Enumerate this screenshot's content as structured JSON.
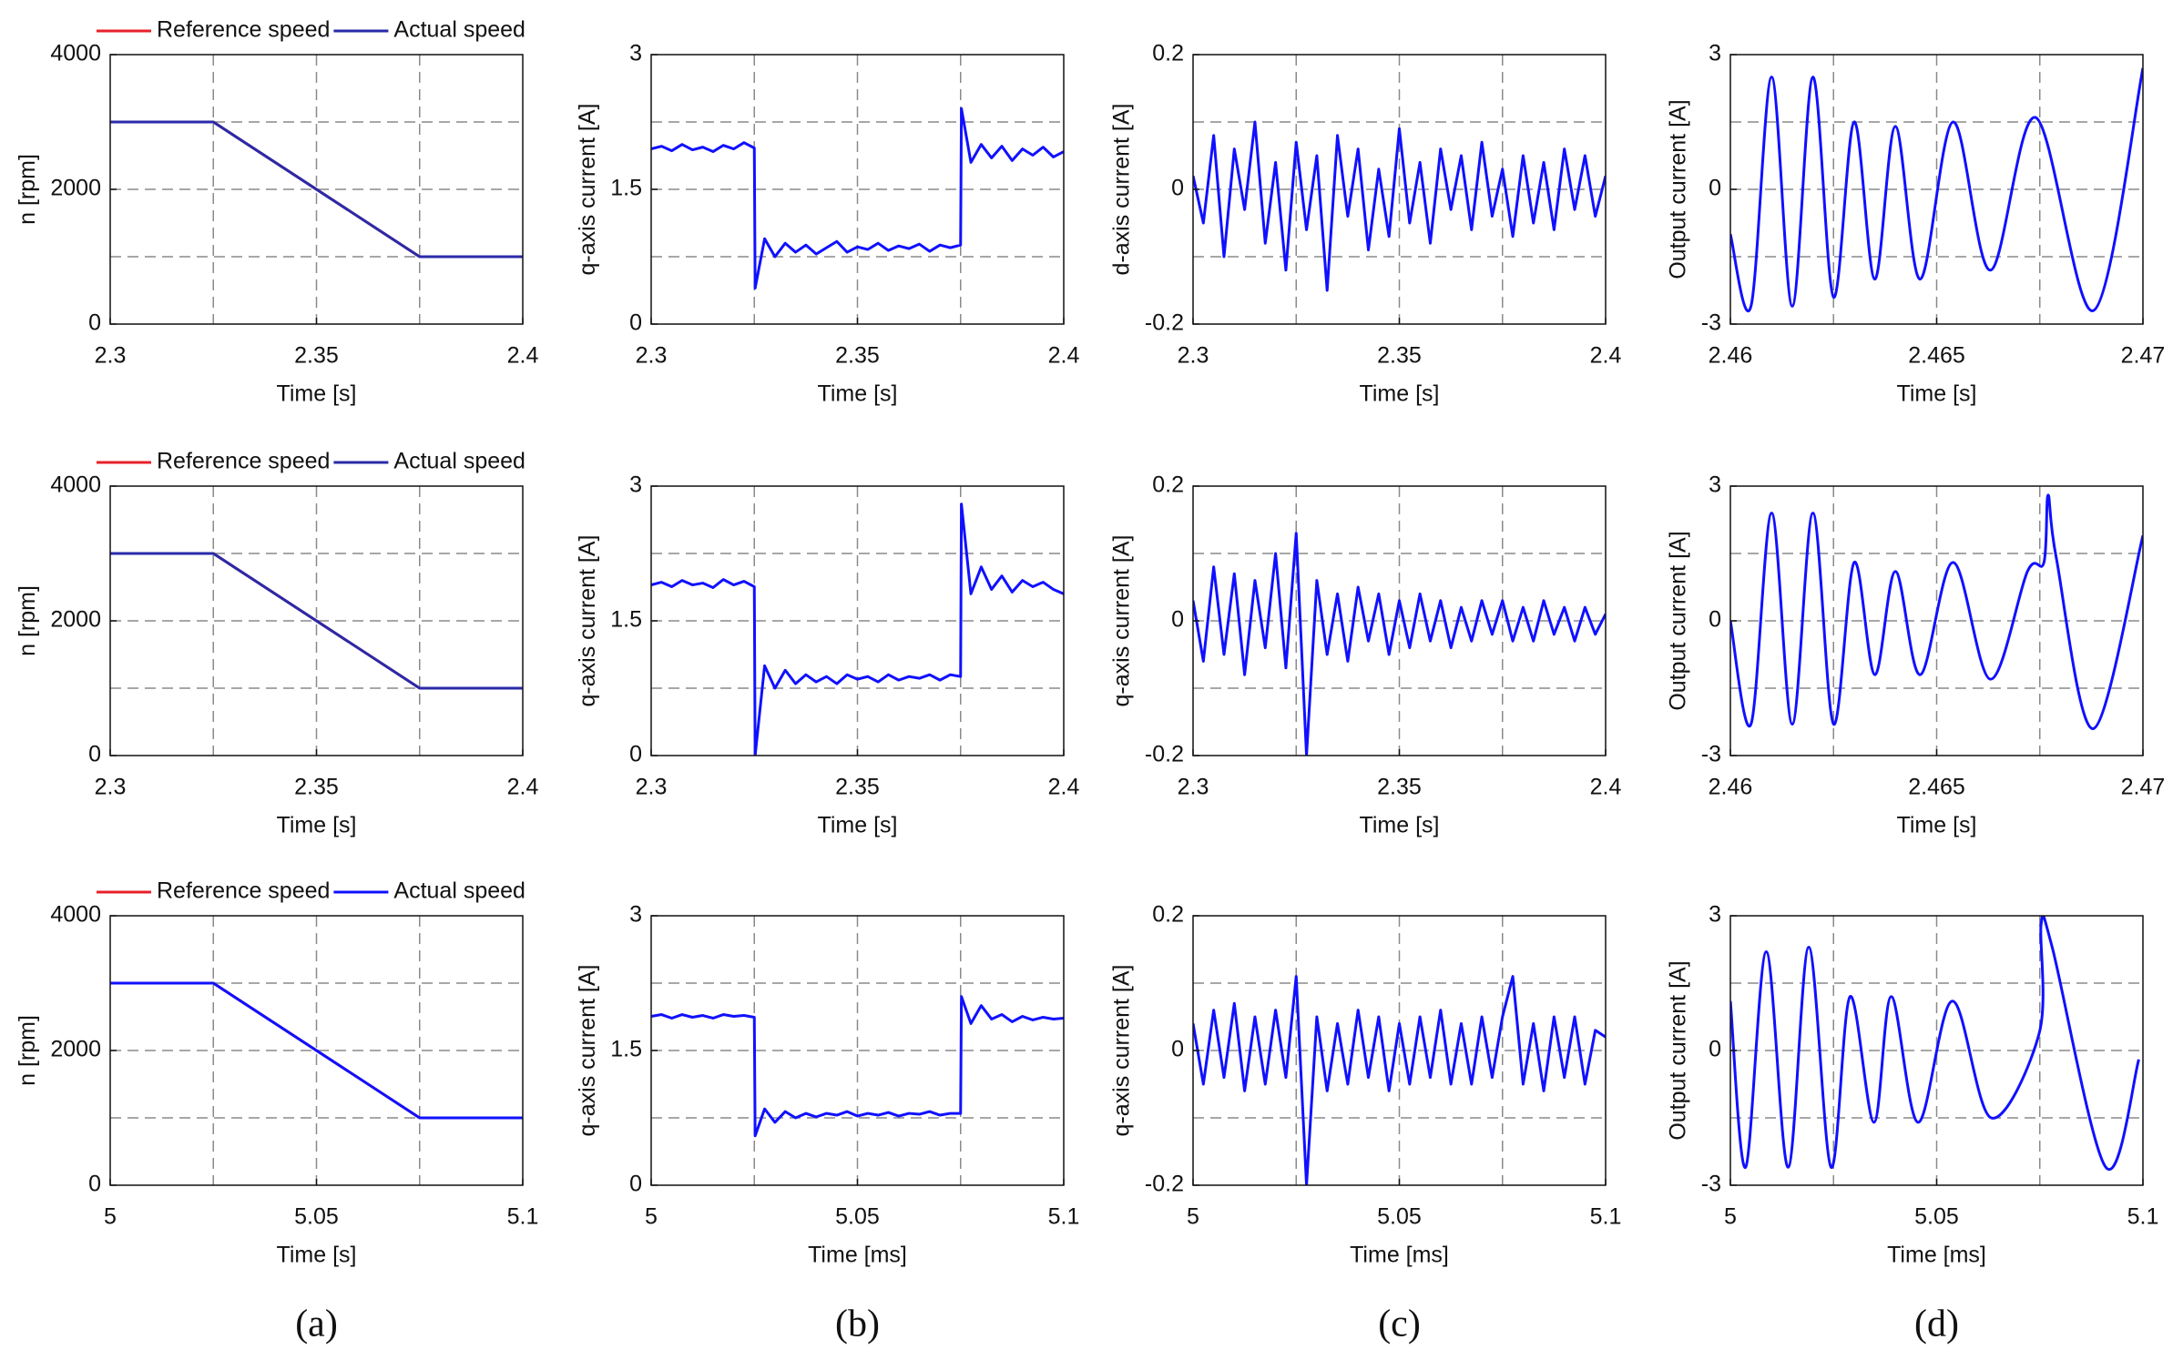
{
  "chart_data": [
    {
      "type": "line",
      "xlabel": "Time [s]",
      "ylabel": "n [rpm]",
      "xlim": [
        2.3,
        2.4
      ],
      "ylim": [
        0,
        4000
      ],
      "xticks": [
        2.3,
        2.35,
        2.4
      ],
      "yticks": [
        0,
        2000,
        4000
      ],
      "xgrid": [
        2.325,
        2.35,
        2.375
      ],
      "ygrid": [
        1000,
        2000,
        3000
      ],
      "x": [
        2.3,
        2.325,
        2.375,
        2.4
      ],
      "series": [
        {
          "name": "Reference speed",
          "color": "#e8202a",
          "values": [
            3000,
            3000,
            1000,
            1000
          ]
        },
        {
          "name": "Actual speed",
          "color": "#2a2aa8",
          "values": [
            3000,
            3000,
            1000,
            1000
          ]
        }
      ]
    },
    {
      "type": "line",
      "xlabel": "Time [s]",
      "ylabel": "q-axis current [A]",
      "xlim": [
        2.3,
        2.4
      ],
      "ylim": [
        0,
        3
      ],
      "xticks": [
        2.3,
        2.35,
        2.4
      ],
      "yticks": [
        0,
        1.5,
        3
      ],
      "xgrid": [
        2.325,
        2.35,
        2.375
      ],
      "ygrid": [
        0.75,
        1.5,
        2.25
      ],
      "x": [
        2.3,
        2.3025,
        2.305,
        2.3075,
        2.31,
        2.3125,
        2.315,
        2.3175,
        2.32,
        2.3225,
        2.325,
        2.3252,
        2.3275,
        2.33,
        2.3325,
        2.335,
        2.3375,
        2.34,
        2.3425,
        2.345,
        2.3475,
        2.35,
        2.3525,
        2.355,
        2.3575,
        2.36,
        2.3625,
        2.365,
        2.3675,
        2.37,
        2.3725,
        2.375,
        2.3752,
        2.3775,
        2.38,
        2.3825,
        2.385,
        2.3875,
        2.39,
        2.3925,
        2.395,
        2.3975,
        2.4
      ],
      "series": [
        {
          "color": "#1010ff",
          "values": [
            1.95,
            1.98,
            1.93,
            2.0,
            1.94,
            1.97,
            1.92,
            1.99,
            1.95,
            2.02,
            1.96,
            0.4,
            0.95,
            0.75,
            0.9,
            0.8,
            0.88,
            0.78,
            0.85,
            0.92,
            0.8,
            0.86,
            0.83,
            0.9,
            0.82,
            0.87,
            0.84,
            0.89,
            0.81,
            0.88,
            0.85,
            0.88,
            2.4,
            1.8,
            2.0,
            1.85,
            1.98,
            1.82,
            1.95,
            1.88,
            1.97,
            1.86,
            1.92
          ]
        }
      ]
    },
    {
      "type": "line",
      "xlabel": "Time [s]",
      "ylabel": "d-axis current [A]",
      "xlim": [
        2.3,
        2.4
      ],
      "ylim": [
        -0.2,
        0.2
      ],
      "xticks": [
        2.3,
        2.35,
        2.4
      ],
      "yticks": [
        -0.2,
        0,
        0.2
      ],
      "xgrid": [
        2.325,
        2.35,
        2.375
      ],
      "ygrid": [
        -0.1,
        0,
        0.1
      ],
      "x": [
        2.3,
        2.3025,
        2.305,
        2.3075,
        2.31,
        2.3125,
        2.315,
        2.3175,
        2.32,
        2.3225,
        2.325,
        2.3275,
        2.33,
        2.3325,
        2.335,
        2.3375,
        2.34,
        2.3425,
        2.345,
        2.3475,
        2.35,
        2.3525,
        2.355,
        2.3575,
        2.36,
        2.3625,
        2.365,
        2.3675,
        2.37,
        2.3725,
        2.375,
        2.3775,
        2.38,
        2.3825,
        2.385,
        2.3875,
        2.39,
        2.3925,
        2.395,
        2.3975,
        2.4
      ],
      "series": [
        {
          "color": "#1010ff",
          "values": [
            0.02,
            -0.05,
            0.08,
            -0.1,
            0.06,
            -0.03,
            0.1,
            -0.08,
            0.04,
            -0.12,
            0.07,
            -0.06,
            0.05,
            -0.15,
            0.08,
            -0.04,
            0.06,
            -0.09,
            0.03,
            -0.07,
            0.09,
            -0.05,
            0.04,
            -0.08,
            0.06,
            -0.03,
            0.05,
            -0.06,
            0.07,
            -0.04,
            0.03,
            -0.07,
            0.05,
            -0.05,
            0.04,
            -0.06,
            0.06,
            -0.03,
            0.05,
            -0.04,
            0.02
          ]
        }
      ]
    },
    {
      "type": "line",
      "smooth": true,
      "xlabel": "Time [s]",
      "ylabel": "Output current [A]",
      "xlim": [
        2.46,
        2.47
      ],
      "ylim": [
        -3,
        3
      ],
      "xticks": [
        2.46,
        2.465,
        2.47
      ],
      "yticks": [
        -3,
        0,
        3
      ],
      "xgrid": [
        2.4625,
        2.465,
        2.4675
      ],
      "ygrid": [
        -1.5,
        0,
        1.5
      ],
      "x": [
        2.46,
        2.4605,
        2.461,
        2.4615,
        2.462,
        2.4625,
        2.463,
        2.4635,
        2.464,
        2.4646,
        2.4654,
        2.4663,
        2.4674,
        2.4688,
        2.47
      ],
      "series": [
        {
          "color": "#1010ff",
          "values": [
            -1,
            -2.6,
            2.5,
            -2.6,
            2.5,
            -2.4,
            1.5,
            -2.0,
            1.4,
            -2.0,
            1.5,
            -1.8,
            1.6,
            -2.7,
            2.7
          ]
        }
      ]
    },
    {
      "type": "line",
      "xlabel": "Time [s]",
      "ylabel": "n [rpm]",
      "xlim": [
        2.3,
        2.4
      ],
      "ylim": [
        0,
        4000
      ],
      "xticks": [
        2.3,
        2.35,
        2.4
      ],
      "yticks": [
        0,
        2000,
        4000
      ],
      "xgrid": [
        2.325,
        2.35,
        2.375
      ],
      "ygrid": [
        1000,
        2000,
        3000
      ],
      "x": [
        2.3,
        2.325,
        2.375,
        2.4
      ],
      "series": [
        {
          "name": "Reference speed",
          "color": "#e8202a",
          "values": [
            3000,
            3000,
            1000,
            1000
          ]
        },
        {
          "name": "Actual speed",
          "color": "#2a2aa8",
          "values": [
            3000,
            3000,
            1000,
            1000
          ]
        }
      ]
    },
    {
      "type": "line",
      "xlabel": "Time [s]",
      "ylabel": "q-axis current [A]",
      "xlim": [
        2.3,
        2.4
      ],
      "ylim": [
        0,
        3
      ],
      "xticks": [
        2.3,
        2.35,
        2.4
      ],
      "yticks": [
        0,
        1.5,
        3
      ],
      "xgrid": [
        2.325,
        2.35,
        2.375
      ],
      "ygrid": [
        0.75,
        1.5,
        2.25
      ],
      "x": [
        2.3,
        2.3025,
        2.305,
        2.3075,
        2.31,
        2.3125,
        2.315,
        2.3175,
        2.32,
        2.3225,
        2.325,
        2.3252,
        2.3275,
        2.33,
        2.3325,
        2.335,
        2.3375,
        2.34,
        2.3425,
        2.345,
        2.3475,
        2.35,
        2.3525,
        2.355,
        2.3575,
        2.36,
        2.3625,
        2.365,
        2.3675,
        2.37,
        2.3725,
        2.375,
        2.3752,
        2.3775,
        2.38,
        2.3825,
        2.385,
        2.3875,
        2.39,
        2.3925,
        2.395,
        2.3975,
        2.4
      ],
      "series": [
        {
          "color": "#1010ff",
          "values": [
            1.9,
            1.93,
            1.88,
            1.95,
            1.9,
            1.92,
            1.87,
            1.96,
            1.9,
            1.94,
            1.88,
            0,
            1.0,
            0.75,
            0.95,
            0.8,
            0.9,
            0.82,
            0.88,
            0.8,
            0.9,
            0.85,
            0.88,
            0.82,
            0.9,
            0.84,
            0.88,
            0.86,
            0.9,
            0.84,
            0.9,
            0.88,
            2.8,
            1.8,
            2.1,
            1.85,
            2.0,
            1.82,
            1.95,
            1.88,
            1.93,
            1.85,
            1.8
          ]
        }
      ]
    },
    {
      "type": "line",
      "xlabel": "Time [s]",
      "ylabel": "q-axis current [A]",
      "xlim": [
        2.3,
        2.4
      ],
      "ylim": [
        -0.2,
        0.2
      ],
      "xticks": [
        2.3,
        2.35,
        2.4
      ],
      "yticks": [
        -0.2,
        0,
        0.2
      ],
      "xgrid": [
        2.325,
        2.35,
        2.375
      ],
      "ygrid": [
        -0.1,
        0,
        0.1
      ],
      "x": [
        2.3,
        2.3025,
        2.305,
        2.3075,
        2.31,
        2.3125,
        2.315,
        2.3175,
        2.32,
        2.3225,
        2.325,
        2.3275,
        2.33,
        2.3325,
        2.335,
        2.3375,
        2.34,
        2.3425,
        2.345,
        2.3475,
        2.35,
        2.3525,
        2.355,
        2.3575,
        2.36,
        2.3625,
        2.365,
        2.3675,
        2.37,
        2.3725,
        2.375,
        2.3775,
        2.38,
        2.3825,
        2.385,
        2.3875,
        2.39,
        2.3925,
        2.395,
        2.3975,
        2.4
      ],
      "series": [
        {
          "color": "#1010ff",
          "values": [
            0.03,
            -0.06,
            0.08,
            -0.05,
            0.07,
            -0.08,
            0.06,
            -0.04,
            0.1,
            -0.07,
            0.13,
            -0.2,
            0.06,
            -0.05,
            0.04,
            -0.06,
            0.05,
            -0.03,
            0.04,
            -0.05,
            0.03,
            -0.04,
            0.04,
            -0.03,
            0.03,
            -0.04,
            0.02,
            -0.03,
            0.03,
            -0.02,
            0.03,
            -0.03,
            0.02,
            -0.03,
            0.03,
            -0.02,
            0.02,
            -0.03,
            0.02,
            -0.02,
            0.01
          ]
        }
      ]
    },
    {
      "type": "line",
      "smooth": true,
      "xlabel": "Time [s]",
      "ylabel": "Output current [A]",
      "xlim": [
        2.46,
        2.47
      ],
      "ylim": [
        -3,
        3
      ],
      "xticks": [
        2.46,
        2.465,
        2.47
      ],
      "yticks": [
        -3,
        0,
        3
      ],
      "xgrid": [
        2.4625,
        2.465,
        2.4675
      ],
      "ygrid": [
        -1.5,
        0,
        1.5
      ],
      "x": [
        2.46,
        2.4605,
        2.461,
        2.4615,
        2.462,
        2.4625,
        2.463,
        2.4635,
        2.464,
        2.4646,
        2.4654,
        2.4663,
        2.4672,
        2.4676,
        2.4677,
        2.4679,
        2.4688,
        2.47
      ],
      "series": [
        {
          "color": "#1010ff",
          "values": [
            0,
            -2.3,
            2.4,
            -2.3,
            2.4,
            -2.3,
            1.3,
            -1.2,
            1.1,
            -1.2,
            1.3,
            -1.3,
            1.1,
            1.3,
            2.8,
            1.4,
            -2.4,
            1.9
          ]
        }
      ]
    },
    {
      "type": "line",
      "xlabel": "Time [s]",
      "ylabel": "n [rpm]",
      "xlim": [
        5,
        5.1
      ],
      "ylim": [
        0,
        4000
      ],
      "xticks": [
        5,
        5.05,
        5.1
      ],
      "yticks": [
        0,
        2000,
        4000
      ],
      "xgrid": [
        5.025,
        5.05,
        5.075
      ],
      "ygrid": [
        1000,
        2000,
        3000
      ],
      "x": [
        5,
        5.025,
        5.075,
        5.1
      ],
      "series": [
        {
          "name": "Reference speed",
          "color": "#e8202a",
          "values": [
            3000,
            3000,
            1000,
            1000
          ]
        },
        {
          "name": "Actual speed",
          "color": "#1010ff",
          "values": [
            3000,
            3000,
            1000,
            1000
          ]
        }
      ]
    },
    {
      "type": "line",
      "xlabel": "Time [ms]",
      "ylabel": "q-axis current [A]",
      "xlim": [
        5,
        5.1
      ],
      "ylim": [
        0,
        3
      ],
      "xticks": [
        5,
        5.05,
        5.1
      ],
      "yticks": [
        0,
        1.5,
        3
      ],
      "xgrid": [
        5.025,
        5.05,
        5.075
      ],
      "ygrid": [
        0.75,
        1.5,
        2.25
      ],
      "x": [
        5,
        5.0025,
        5.005,
        5.0075,
        5.01,
        5.0125,
        5.015,
        5.0175,
        5.02,
        5.0225,
        5.025,
        5.0252,
        5.0275,
        5.03,
        5.0325,
        5.035,
        5.0375,
        5.04,
        5.0425,
        5.045,
        5.0475,
        5.05,
        5.0525,
        5.055,
        5.0575,
        5.06,
        5.0625,
        5.065,
        5.0675,
        5.07,
        5.0725,
        5.075,
        5.0752,
        5.0775,
        5.08,
        5.0825,
        5.085,
        5.0875,
        5.09,
        5.0925,
        5.095,
        5.0975,
        5.1
      ],
      "series": [
        {
          "color": "#1010ff",
          "values": [
            1.88,
            1.9,
            1.86,
            1.9,
            1.87,
            1.89,
            1.86,
            1.9,
            1.88,
            1.89,
            1.87,
            0.55,
            0.85,
            0.7,
            0.82,
            0.75,
            0.8,
            0.76,
            0.8,
            0.78,
            0.82,
            0.77,
            0.8,
            0.78,
            0.81,
            0.77,
            0.8,
            0.79,
            0.82,
            0.78,
            0.8,
            0.8,
            2.1,
            1.8,
            2.0,
            1.85,
            1.9,
            1.82,
            1.88,
            1.84,
            1.87,
            1.85,
            1.86
          ]
        }
      ]
    },
    {
      "type": "line",
      "xlabel": "Time [ms]",
      "ylabel": "q-axis current [A]",
      "xlim": [
        5,
        5.1
      ],
      "ylim": [
        -0.2,
        0.2
      ],
      "xticks": [
        5,
        5.05,
        5.1
      ],
      "yticks": [
        -0.2,
        0,
        0.2
      ],
      "xgrid": [
        5.025,
        5.05,
        5.075
      ],
      "ygrid": [
        -0.1,
        0,
        0.1
      ],
      "x": [
        5,
        5.0025,
        5.005,
        5.0075,
        5.01,
        5.0125,
        5.015,
        5.0175,
        5.02,
        5.0225,
        5.025,
        5.0275,
        5.03,
        5.0325,
        5.035,
        5.0375,
        5.04,
        5.0425,
        5.045,
        5.0475,
        5.05,
        5.0525,
        5.055,
        5.0575,
        5.06,
        5.0625,
        5.065,
        5.0675,
        5.07,
        5.0725,
        5.075,
        5.0775,
        5.08,
        5.0825,
        5.085,
        5.0875,
        5.09,
        5.0925,
        5.095,
        5.0975,
        5.1
      ],
      "series": [
        {
          "color": "#1010ff",
          "values": [
            0.04,
            -0.05,
            0.06,
            -0.04,
            0.07,
            -0.06,
            0.05,
            -0.05,
            0.06,
            -0.04,
            0.11,
            -0.2,
            0.05,
            -0.06,
            0.04,
            -0.05,
            0.06,
            -0.04,
            0.05,
            -0.06,
            0.04,
            -0.05,
            0.05,
            -0.04,
            0.06,
            -0.05,
            0.04,
            -0.05,
            0.05,
            -0.04,
            0.05,
            0.11,
            -0.05,
            0.04,
            -0.06,
            0.05,
            -0.04,
            0.05,
            -0.05,
            0.03,
            0.02
          ]
        }
      ]
    },
    {
      "type": "line",
      "smooth": true,
      "xlabel": "Time [ms]",
      "ylabel": "Output current [A]",
      "xlim": [
        5,
        5.1
      ],
      "ylim": [
        -3,
        3
      ],
      "xticks": [
        5,
        5.05,
        5.1
      ],
      "yticks": [
        -3,
        0,
        3
      ],
      "xgrid": [
        5.025,
        5.05,
        5.075
      ],
      "ygrid": [
        -1.5,
        0,
        1.5
      ],
      "x": [
        5,
        5.0037,
        5.0087,
        5.014,
        5.019,
        5.0244,
        5.029,
        5.0348,
        5.039,
        5.0455,
        5.0538,
        5.0632,
        5.0749,
        5.0753,
        5.078,
        5.091,
        5.099
      ],
      "series": [
        {
          "color": "#1010ff",
          "values": [
            1.1,
            -2.6,
            2.2,
            -2.6,
            2.3,
            -2.6,
            1.2,
            -1.6,
            1.2,
            -1.6,
            1.1,
            -1.5,
            0.4,
            2.8,
            2.3,
            -2.6,
            -0.2
          ]
        }
      ]
    }
  ],
  "panel_labels": [
    "(a)",
    "(b)",
    "(c)",
    "(d)"
  ]
}
